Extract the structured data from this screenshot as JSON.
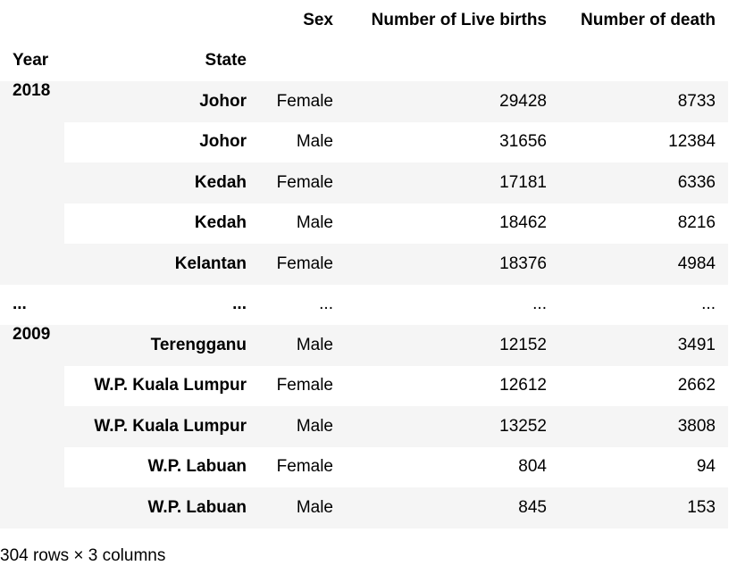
{
  "header": {
    "columns_label_row": [
      "",
      "",
      "Sex",
      "Number of Live births",
      "Number of death"
    ],
    "index_names": [
      "Year",
      "State"
    ]
  },
  "groups": [
    {
      "year": "2018",
      "rows": [
        {
          "state": "Johor",
          "sex": "Female",
          "births": "29428",
          "death": "8733"
        },
        {
          "state": "Johor",
          "sex": "Male",
          "births": "31656",
          "death": "12384"
        },
        {
          "state": "Kedah",
          "sex": "Female",
          "births": "17181",
          "death": "6336"
        },
        {
          "state": "Kedah",
          "sex": "Male",
          "births": "18462",
          "death": "8216"
        },
        {
          "state": "Kelantan",
          "sex": "Female",
          "births": "18376",
          "death": "4984"
        }
      ]
    },
    {
      "year": "...",
      "rows": [
        {
          "state": "...",
          "sex": "...",
          "births": "...",
          "death": "..."
        }
      ]
    },
    {
      "year": "2009",
      "rows": [
        {
          "state": "Terengganu",
          "sex": "Male",
          "births": "12152",
          "death": "3491"
        },
        {
          "state": "W.P. Kuala Lumpur",
          "sex": "Female",
          "births": "12612",
          "death": "2662"
        },
        {
          "state": "W.P. Kuala Lumpur",
          "sex": "Male",
          "births": "13252",
          "death": "3808"
        },
        {
          "state": "W.P. Labuan",
          "sex": "Female",
          "births": "804",
          "death": "94"
        },
        {
          "state": "W.P. Labuan",
          "sex": "Male",
          "births": "845",
          "death": "153"
        }
      ]
    }
  ],
  "footer": "304 rows × 3 columns"
}
